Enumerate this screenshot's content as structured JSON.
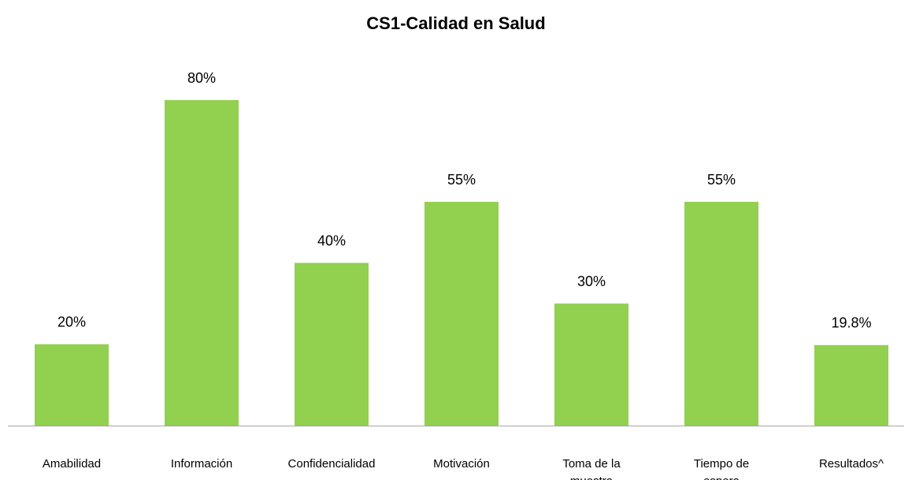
{
  "chart_data": {
    "type": "bar",
    "title": "CS1-Calidad en Salud",
    "categories": [
      "Amabilidad",
      "Información",
      "Confidencialidad",
      "Motivación",
      "Toma de la muestra",
      "Tiempo de espera",
      "Resultados^"
    ],
    "values": [
      20,
      80,
      40,
      55,
      30,
      55,
      19.8
    ],
    "value_labels": [
      "20%",
      "80%",
      "40%",
      "55%",
      "30%",
      "55%",
      "19.8%"
    ],
    "color": "#92d050"
  }
}
